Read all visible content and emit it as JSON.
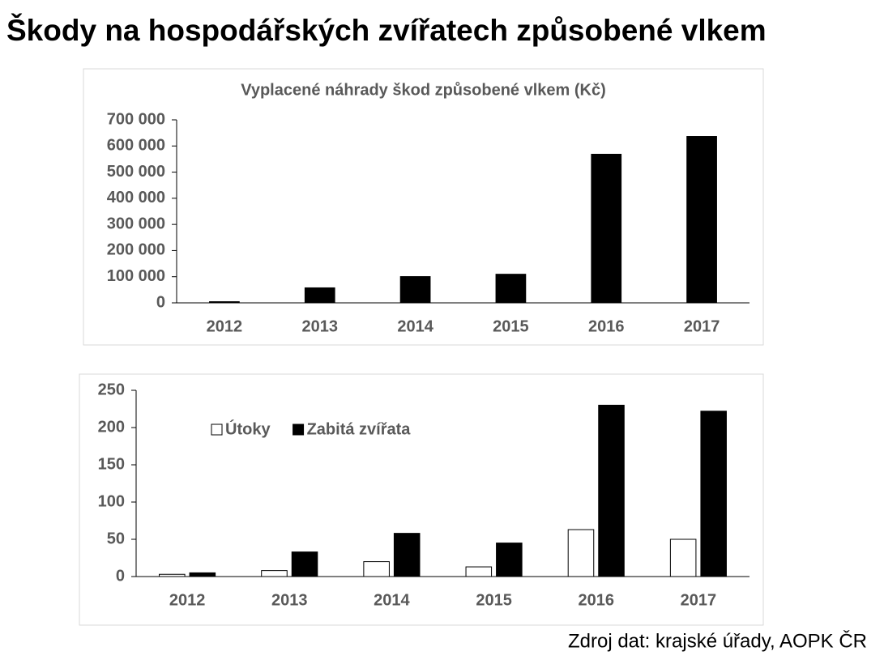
{
  "title": "Škody na hospodářských zvířatech způsobené vlkem",
  "source": "Zdroj dat: krajské úřady, AOPK ČR",
  "chart_data": [
    {
      "type": "bar",
      "title": "Vyplacené náhrady škod způsobené vlkem (Kč)",
      "categories": [
        "2012",
        "2013",
        "2014",
        "2015",
        "2016",
        "2017"
      ],
      "values": [
        6000,
        59000,
        102000,
        111000,
        570000,
        638000
      ],
      "color": "#000000",
      "ylim": [
        0,
        700000
      ],
      "yticks": [
        0,
        {
          "value": 100000,
          "label": "100 000"
        },
        {
          "value": 200000,
          "label": "200 000"
        },
        {
          "value": 300000,
          "label": "300 000"
        },
        {
          "value": 400000,
          "label": "400 000"
        },
        {
          "value": 500000,
          "label": "500 000"
        },
        {
          "value": 600000,
          "label": "600 000"
        },
        {
          "value": 700000,
          "label": "700 000"
        }
      ],
      "grid": false
    },
    {
      "type": "grouped_bar",
      "categories": [
        "2012",
        "2013",
        "2014",
        "2015",
        "2016",
        "2017"
      ],
      "series": [
        {
          "name": "Útoky",
          "color": "#ffffff",
          "values": [
            3,
            8,
            20,
            13,
            63,
            50
          ]
        },
        {
          "name": "Zabitá zvířata",
          "color": "#000000",
          "values": [
            5,
            33,
            58,
            45,
            230,
            222
          ]
        }
      ],
      "ylim": [
        0,
        250
      ],
      "yticks": [
        0,
        50,
        100,
        150,
        200,
        250
      ],
      "legend": "upper left",
      "grid": false
    }
  ]
}
